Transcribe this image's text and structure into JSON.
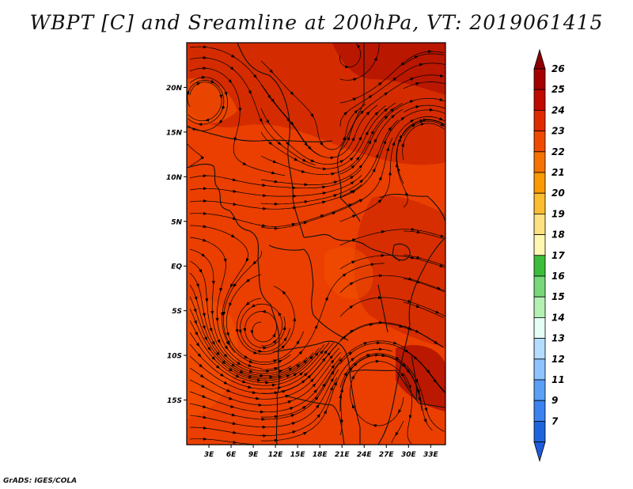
{
  "title": "WBPT [C] and Sreamline at 200hPa, VT: 2019061415",
  "credit": "GrADS: IGES/COLA",
  "map": {
    "lat_labels": [
      {
        "label": "20N",
        "lat": 20
      },
      {
        "label": "15N",
        "lat": 15
      },
      {
        "label": "10N",
        "lat": 10
      },
      {
        "label": "5N",
        "lat": 5
      },
      {
        "label": "EQ",
        "lat": 0
      },
      {
        "label": "5S",
        "lat": -5
      },
      {
        "label": "10S",
        "lat": -10
      },
      {
        "label": "15S",
        "lat": -15
      }
    ],
    "lon_labels": [
      {
        "label": "3E",
        "lon": 3
      },
      {
        "label": "6E",
        "lon": 6
      },
      {
        "label": "9E",
        "lon": 9
      },
      {
        "label": "12E",
        "lon": 12
      },
      {
        "label": "15E",
        "lon": 15
      },
      {
        "label": "18E",
        "lon": 18
      },
      {
        "label": "21E",
        "lon": 21
      },
      {
        "label": "24E",
        "lon": 24
      },
      {
        "label": "27E",
        "lon": 27
      },
      {
        "label": "30E",
        "lon": 30
      },
      {
        "label": "33E",
        "lon": 33
      }
    ],
    "lon_range": [
      0,
      35
    ],
    "lat_range": [
      -20,
      25
    ]
  },
  "colorbar": {
    "levels": [
      {
        "label": "26",
        "color": "#a50000"
      },
      {
        "label": "25",
        "color": "#c00a00"
      },
      {
        "label": "24",
        "color": "#e02a00"
      },
      {
        "label": "23",
        "color": "#f04a00"
      },
      {
        "label": "22",
        "color": "#f57200"
      },
      {
        "label": "21",
        "color": "#fa9a00"
      },
      {
        "label": "20",
        "color": "#fcbc30"
      },
      {
        "label": "19",
        "color": "#fde080"
      },
      {
        "label": "18",
        "color": "#fff6b0"
      },
      {
        "label": "17",
        "color": "#3cbe3c"
      },
      {
        "label": "16",
        "color": "#78d878"
      },
      {
        "label": "15",
        "color": "#b4f0b4"
      },
      {
        "label": "14",
        "color": "#e6fff6"
      },
      {
        "label": "13",
        "color": "#b4dcff"
      },
      {
        "label": "12",
        "color": "#8ec4ff"
      },
      {
        "label": "11",
        "color": "#5aa0f5"
      },
      {
        "label": "9",
        "color": "#3c82f0"
      },
      {
        "label": "7",
        "color": "#1e64dc"
      }
    ],
    "top_arrow_color": "#8c0000",
    "bottom_arrow_color": "#1e5adc"
  },
  "field_colors": {
    "base": "#ea3f00",
    "dark": "#d12a00",
    "darker": "#b51400",
    "light": "#f25000"
  }
}
